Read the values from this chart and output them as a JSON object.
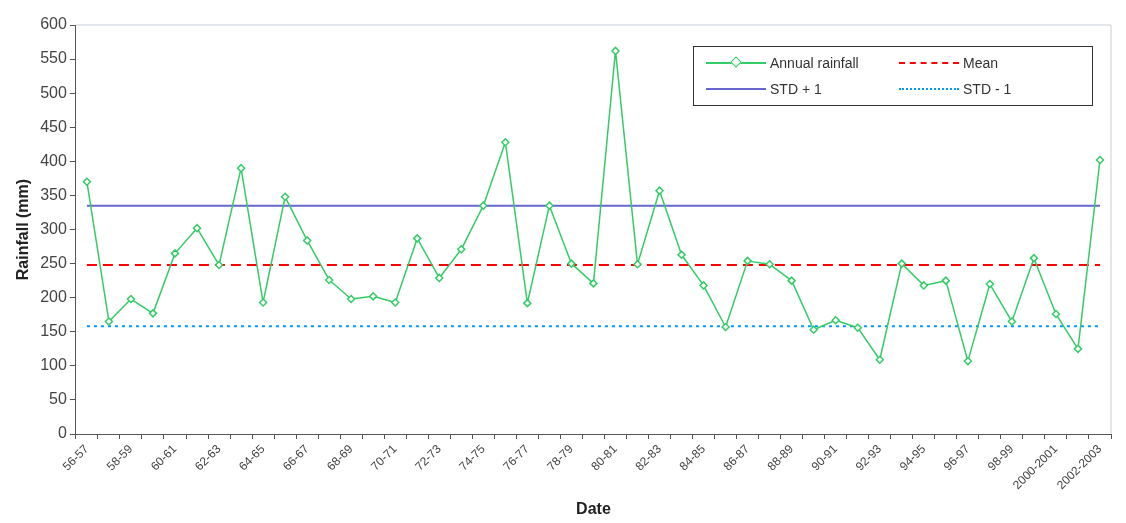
{
  "chart_data": {
    "type": "line",
    "xlabel": "Date",
    "ylabel": "Rainfall (mm)",
    "categories": [
      "56-57",
      null,
      "58-59",
      null,
      "60-61",
      null,
      "62-63",
      null,
      "64-65",
      null,
      "66-67",
      null,
      "68-69",
      null,
      "70-71",
      null,
      "72-73",
      null,
      "74-75",
      null,
      "76-77",
      null,
      "78-79",
      null,
      "80-81",
      null,
      "82-83",
      null,
      "84-85",
      null,
      "86-87",
      null,
      "88-89",
      null,
      "90-91",
      null,
      "92-93",
      null,
      "94-95",
      null,
      "96-97",
      null,
      "98-99",
      null,
      "2000-2001",
      null,
      "2002-2003"
    ],
    "series": [
      {
        "name": "Annual rainfall",
        "color": "#33cc66",
        "marker": "diamond",
        "line_style": "solid",
        "values": [
          370,
          165,
          198,
          177,
          265,
          302,
          248,
          390,
          193,
          348,
          284,
          226,
          198,
          202,
          193,
          287,
          229,
          271,
          335,
          428,
          192,
          335,
          250,
          221,
          562,
          249,
          357,
          263,
          218,
          157,
          254,
          249,
          225,
          153,
          167,
          156,
          109,
          250,
          218,
          225,
          107,
          220,
          165,
          258,
          176,
          125,
          402
        ]
      },
      {
        "name": "STD + 1",
        "color": "#6666cc",
        "marker": "none",
        "line_style": "solid",
        "values": [
          335,
          335,
          335,
          335,
          335,
          335,
          335,
          335,
          335,
          335,
          335,
          335,
          335,
          335,
          335,
          335,
          335,
          335,
          335,
          335,
          335,
          335,
          335,
          335,
          335,
          335,
          335,
          335,
          335,
          335,
          335,
          335,
          335,
          335,
          335,
          335,
          335,
          335,
          335,
          335,
          335,
          335,
          335,
          335,
          335,
          335,
          335
        ]
      },
      {
        "name": "Mean",
        "color": "#ff0000",
        "marker": "none",
        "line_style": "dashed",
        "values": [
          248,
          248,
          248,
          248,
          248,
          248,
          248,
          248,
          248,
          248,
          248,
          248,
          248,
          248,
          248,
          248,
          248,
          248,
          248,
          248,
          248,
          248,
          248,
          248,
          248,
          248,
          248,
          248,
          248,
          248,
          248,
          248,
          248,
          248,
          248,
          248,
          248,
          248,
          248,
          248,
          248,
          248,
          248,
          248,
          248,
          248,
          248
        ]
      },
      {
        "name": "STD - 1",
        "color": "#0099ff",
        "marker": "none",
        "line_style": "dotted",
        "values": [
          158,
          158,
          158,
          158,
          158,
          158,
          158,
          158,
          158,
          158,
          158,
          158,
          158,
          158,
          158,
          158,
          158,
          158,
          158,
          158,
          158,
          158,
          158,
          158,
          158,
          158,
          158,
          158,
          158,
          158,
          158,
          158,
          158,
          158,
          158,
          158,
          158,
          158,
          158,
          158,
          158,
          158,
          158,
          158,
          158,
          158,
          158
        ]
      }
    ],
    "ylim": [
      0,
      600
    ],
    "yticks": [
      0,
      50,
      100,
      150,
      200,
      250,
      300,
      350,
      400,
      450,
      500,
      550,
      600
    ],
    "grid": false,
    "legend": "top right"
  }
}
